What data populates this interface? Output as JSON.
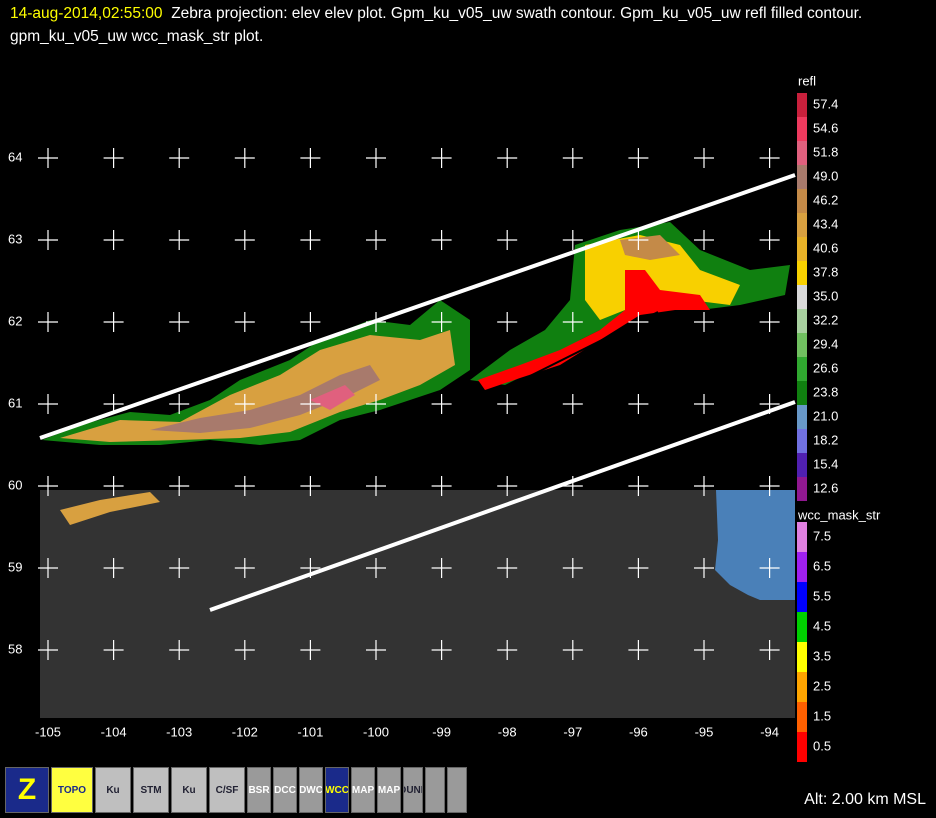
{
  "header": {
    "time": "14-aug-2014,02:55:00",
    "description": "Zebra projection: elev elev  plot.  Gpm_ku_v05_uw swath contour.  Gpm_ku_v05_uw refl filled contour.  gpm_ku_v05_uw wcc_mask_str  plot."
  },
  "axes": {
    "lat": [
      64,
      63,
      62,
      61,
      60,
      59,
      58
    ],
    "lon": [
      -105,
      -104,
      -103,
      -102,
      -101,
      -100,
      -99,
      -98,
      -97,
      -96,
      -95,
      -94
    ]
  },
  "legends": [
    {
      "title": "refl",
      "entries": [
        {
          "label": "57.4",
          "color": "#c8203c"
        },
        {
          "label": "54.6",
          "color": "#ee3a5e"
        },
        {
          "label": "51.8",
          "color": "#e0607e"
        },
        {
          "label": "49.0",
          "color": "#a87a6c"
        },
        {
          "label": "46.2",
          "color": "#c48a48"
        },
        {
          "label": "43.4",
          "color": "#d8a040"
        },
        {
          "label": "40.6",
          "color": "#e8b228"
        },
        {
          "label": "37.8",
          "color": "#f8d000"
        },
        {
          "label": "35.0",
          "color": "#d8d8d8"
        },
        {
          "label": "32.2",
          "color": "#a8d0a0"
        },
        {
          "label": "29.4",
          "color": "#70c060"
        },
        {
          "label": "26.6",
          "color": "#30a830"
        },
        {
          "label": "23.8",
          "color": "#108010"
        },
        {
          "label": "21.0",
          "color": "#6898c8"
        },
        {
          "label": "18.2",
          "color": "#7070e0"
        },
        {
          "label": "15.4",
          "color": "#5020b0"
        },
        {
          "label": "12.6",
          "color": "#901890"
        }
      ]
    },
    {
      "title": "wcc_mask_str",
      "entries": [
        {
          "label": "7.5",
          "color": "#e080e0"
        },
        {
          "label": "6.5",
          "color": "#a020f0"
        },
        {
          "label": "5.5",
          "color": "#0000ff"
        },
        {
          "label": "4.5",
          "color": "#00d000"
        },
        {
          "label": "3.5",
          "color": "#ffff00"
        },
        {
          "label": "2.5",
          "color": "#ffa500"
        },
        {
          "label": "1.5",
          "color": "#ff6000"
        },
        {
          "label": "0.5",
          "color": "#ff0000"
        }
      ]
    }
  ],
  "toolbar": [
    "Z",
    "TOPO",
    "Ku",
    "STM",
    "Ku",
    "C/SF",
    "BSR",
    "DCC",
    "DWC",
    "WCC",
    "MAP",
    "MAP",
    "BOUNDS"
  ],
  "status": "Alt: 2.00 km MSL"
}
